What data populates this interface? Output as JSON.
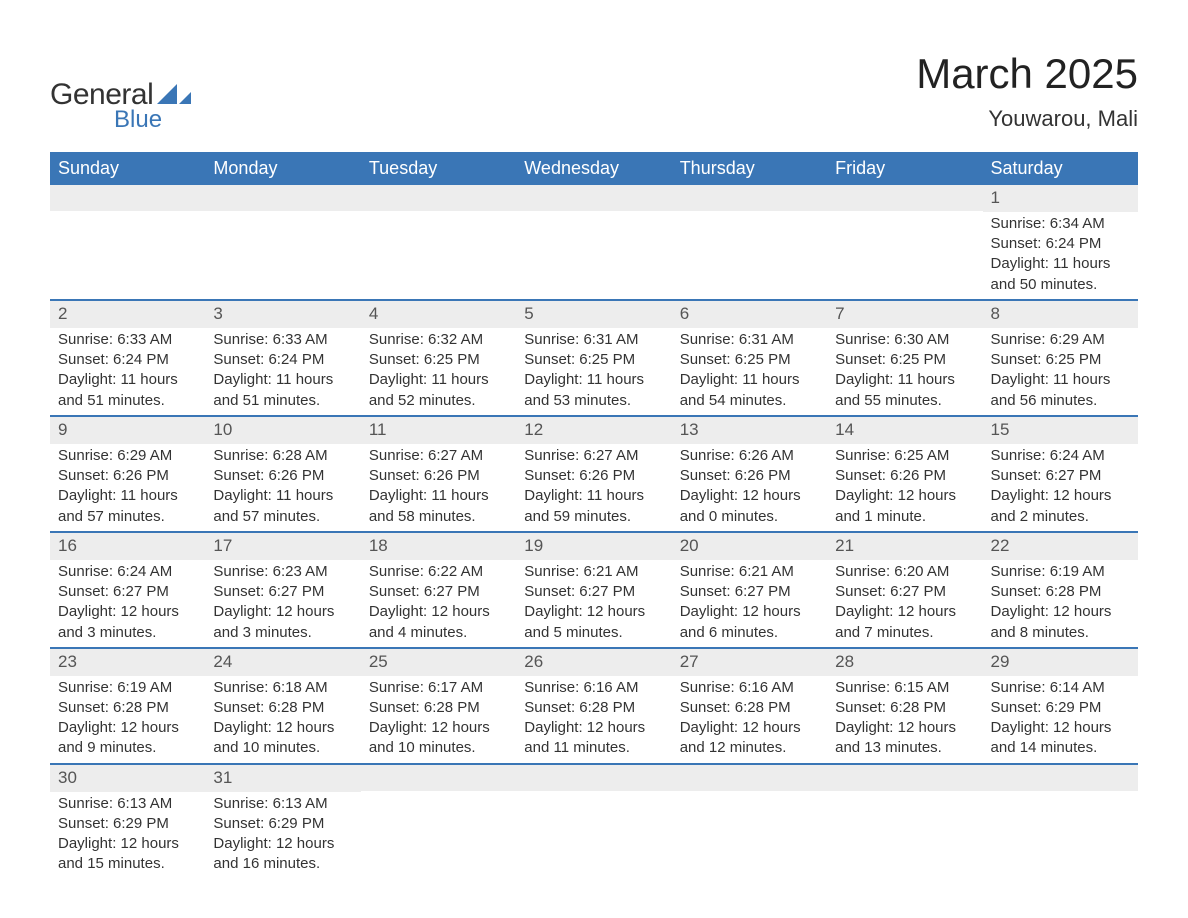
{
  "brand": {
    "word1": "General",
    "word2": "Blue",
    "icon_color": "#3a76b6"
  },
  "title": "March 2025",
  "location": "Youwarou, Mali",
  "colors": {
    "header_bg": "#3a76b6",
    "header_text": "#ffffff",
    "row_sep": "#3a76b6",
    "daybar_bg": "#ededed",
    "text": "#333333",
    "background": "#ffffff"
  },
  "typography": {
    "base_family": "Arial, Helvetica, sans-serif",
    "title_fontsize": 42,
    "location_fontsize": 22,
    "th_fontsize": 18,
    "cell_fontsize": 15
  },
  "weekdays": [
    "Sunday",
    "Monday",
    "Tuesday",
    "Wednesday",
    "Thursday",
    "Friday",
    "Saturday"
  ],
  "weeks": [
    [
      null,
      null,
      null,
      null,
      null,
      null,
      {
        "n": "1",
        "sr": "Sunrise: 6:34 AM",
        "ss": "Sunset: 6:24 PM",
        "d1": "Daylight: 11 hours",
        "d2": "and 50 minutes."
      }
    ],
    [
      {
        "n": "2",
        "sr": "Sunrise: 6:33 AM",
        "ss": "Sunset: 6:24 PM",
        "d1": "Daylight: 11 hours",
        "d2": "and 51 minutes."
      },
      {
        "n": "3",
        "sr": "Sunrise: 6:33 AM",
        "ss": "Sunset: 6:24 PM",
        "d1": "Daylight: 11 hours",
        "d2": "and 51 minutes."
      },
      {
        "n": "4",
        "sr": "Sunrise: 6:32 AM",
        "ss": "Sunset: 6:25 PM",
        "d1": "Daylight: 11 hours",
        "d2": "and 52 minutes."
      },
      {
        "n": "5",
        "sr": "Sunrise: 6:31 AM",
        "ss": "Sunset: 6:25 PM",
        "d1": "Daylight: 11 hours",
        "d2": "and 53 minutes."
      },
      {
        "n": "6",
        "sr": "Sunrise: 6:31 AM",
        "ss": "Sunset: 6:25 PM",
        "d1": "Daylight: 11 hours",
        "d2": "and 54 minutes."
      },
      {
        "n": "7",
        "sr": "Sunrise: 6:30 AM",
        "ss": "Sunset: 6:25 PM",
        "d1": "Daylight: 11 hours",
        "d2": "and 55 minutes."
      },
      {
        "n": "8",
        "sr": "Sunrise: 6:29 AM",
        "ss": "Sunset: 6:25 PM",
        "d1": "Daylight: 11 hours",
        "d2": "and 56 minutes."
      }
    ],
    [
      {
        "n": "9",
        "sr": "Sunrise: 6:29 AM",
        "ss": "Sunset: 6:26 PM",
        "d1": "Daylight: 11 hours",
        "d2": "and 57 minutes."
      },
      {
        "n": "10",
        "sr": "Sunrise: 6:28 AM",
        "ss": "Sunset: 6:26 PM",
        "d1": "Daylight: 11 hours",
        "d2": "and 57 minutes."
      },
      {
        "n": "11",
        "sr": "Sunrise: 6:27 AM",
        "ss": "Sunset: 6:26 PM",
        "d1": "Daylight: 11 hours",
        "d2": "and 58 minutes."
      },
      {
        "n": "12",
        "sr": "Sunrise: 6:27 AM",
        "ss": "Sunset: 6:26 PM",
        "d1": "Daylight: 11 hours",
        "d2": "and 59 minutes."
      },
      {
        "n": "13",
        "sr": "Sunrise: 6:26 AM",
        "ss": "Sunset: 6:26 PM",
        "d1": "Daylight: 12 hours",
        "d2": "and 0 minutes."
      },
      {
        "n": "14",
        "sr": "Sunrise: 6:25 AM",
        "ss": "Sunset: 6:26 PM",
        "d1": "Daylight: 12 hours",
        "d2": "and 1 minute."
      },
      {
        "n": "15",
        "sr": "Sunrise: 6:24 AM",
        "ss": "Sunset: 6:27 PM",
        "d1": "Daylight: 12 hours",
        "d2": "and 2 minutes."
      }
    ],
    [
      {
        "n": "16",
        "sr": "Sunrise: 6:24 AM",
        "ss": "Sunset: 6:27 PM",
        "d1": "Daylight: 12 hours",
        "d2": "and 3 minutes."
      },
      {
        "n": "17",
        "sr": "Sunrise: 6:23 AM",
        "ss": "Sunset: 6:27 PM",
        "d1": "Daylight: 12 hours",
        "d2": "and 3 minutes."
      },
      {
        "n": "18",
        "sr": "Sunrise: 6:22 AM",
        "ss": "Sunset: 6:27 PM",
        "d1": "Daylight: 12 hours",
        "d2": "and 4 minutes."
      },
      {
        "n": "19",
        "sr": "Sunrise: 6:21 AM",
        "ss": "Sunset: 6:27 PM",
        "d1": "Daylight: 12 hours",
        "d2": "and 5 minutes."
      },
      {
        "n": "20",
        "sr": "Sunrise: 6:21 AM",
        "ss": "Sunset: 6:27 PM",
        "d1": "Daylight: 12 hours",
        "d2": "and 6 minutes."
      },
      {
        "n": "21",
        "sr": "Sunrise: 6:20 AM",
        "ss": "Sunset: 6:27 PM",
        "d1": "Daylight: 12 hours",
        "d2": "and 7 minutes."
      },
      {
        "n": "22",
        "sr": "Sunrise: 6:19 AM",
        "ss": "Sunset: 6:28 PM",
        "d1": "Daylight: 12 hours",
        "d2": "and 8 minutes."
      }
    ],
    [
      {
        "n": "23",
        "sr": "Sunrise: 6:19 AM",
        "ss": "Sunset: 6:28 PM",
        "d1": "Daylight: 12 hours",
        "d2": "and 9 minutes."
      },
      {
        "n": "24",
        "sr": "Sunrise: 6:18 AM",
        "ss": "Sunset: 6:28 PM",
        "d1": "Daylight: 12 hours",
        "d2": "and 10 minutes."
      },
      {
        "n": "25",
        "sr": "Sunrise: 6:17 AM",
        "ss": "Sunset: 6:28 PM",
        "d1": "Daylight: 12 hours",
        "d2": "and 10 minutes."
      },
      {
        "n": "26",
        "sr": "Sunrise: 6:16 AM",
        "ss": "Sunset: 6:28 PM",
        "d1": "Daylight: 12 hours",
        "d2": "and 11 minutes."
      },
      {
        "n": "27",
        "sr": "Sunrise: 6:16 AM",
        "ss": "Sunset: 6:28 PM",
        "d1": "Daylight: 12 hours",
        "d2": "and 12 minutes."
      },
      {
        "n": "28",
        "sr": "Sunrise: 6:15 AM",
        "ss": "Sunset: 6:28 PM",
        "d1": "Daylight: 12 hours",
        "d2": "and 13 minutes."
      },
      {
        "n": "29",
        "sr": "Sunrise: 6:14 AM",
        "ss": "Sunset: 6:29 PM",
        "d1": "Daylight: 12 hours",
        "d2": "and 14 minutes."
      }
    ],
    [
      {
        "n": "30",
        "sr": "Sunrise: 6:13 AM",
        "ss": "Sunset: 6:29 PM",
        "d1": "Daylight: 12 hours",
        "d2": "and 15 minutes."
      },
      {
        "n": "31",
        "sr": "Sunrise: 6:13 AM",
        "ss": "Sunset: 6:29 PM",
        "d1": "Daylight: 12 hours",
        "d2": "and 16 minutes."
      },
      null,
      null,
      null,
      null,
      null
    ]
  ]
}
